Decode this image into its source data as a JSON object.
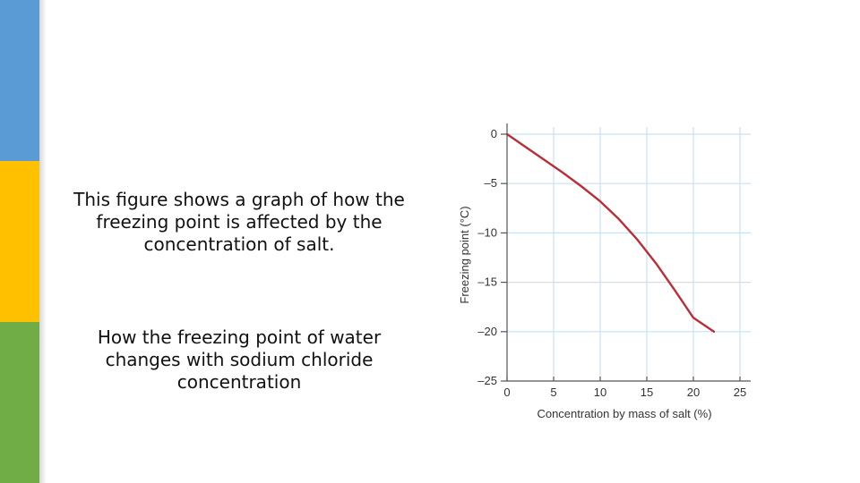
{
  "colors": {
    "stripe_blue": "#5b9bd5",
    "stripe_yellow": "#ffc000",
    "stripe_green": "#70ad47",
    "line": "#b5313a",
    "grid": "#c9e1f1",
    "axis": "#555555"
  },
  "text": {
    "caption1_lines": [
      "This figure shows a graph of how the",
      "freezing point is affected by the",
      "concentration of salt."
    ],
    "caption2_lines": [
      "How the freezing point of water",
      "changes with sodium chloride",
      "concentration"
    ]
  },
  "chart_data": {
    "type": "line",
    "title": "",
    "xlabel": "Concentration by mass of salt (%)",
    "ylabel": "Freezing point (°C)",
    "xlim": [
      0,
      25
    ],
    "ylim": [
      -25,
      0
    ],
    "x_ticks": [
      0,
      5,
      10,
      15,
      20,
      25
    ],
    "y_ticks": [
      0,
      -5,
      -10,
      -15,
      -20,
      -25
    ],
    "y_tick_labels": [
      "0",
      "–5",
      "–10",
      "–15",
      "–20",
      "–25"
    ],
    "grid": true,
    "legend": "none",
    "series": [
      {
        "x": [
          0,
          2,
          4,
          6,
          8,
          10,
          12,
          14,
          16,
          18,
          20,
          22.2
        ],
        "y": [
          0,
          -1.3,
          -2.6,
          -3.9,
          -5.3,
          -6.8,
          -8.6,
          -10.7,
          -13.1,
          -15.8,
          -18.6,
          -20.0
        ]
      }
    ]
  }
}
